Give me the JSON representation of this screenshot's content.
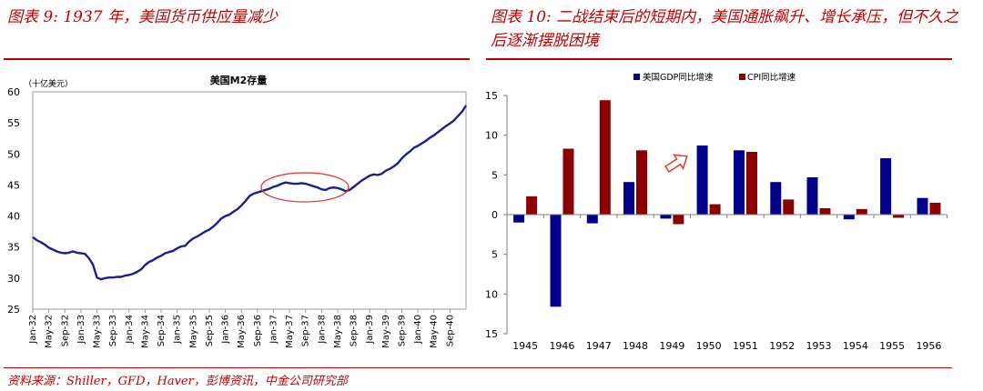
{
  "titles": {
    "left": "图表 9: 1937 年，美国货币供应量减少",
    "right": "图表 10: 二战结束后的短期内，美国通胀飙升、增长承压，但不久之后逐渐摆脱困境"
  },
  "source": "资料来源：Shiller，GFD，Haver，彭博资讯，中金公司研究部",
  "colors": {
    "accent": "#c00000",
    "navy": "#1a1f8c",
    "gdp": "#00008b",
    "cpi": "#8b0000"
  },
  "chart_data": [
    {
      "type": "line",
      "title": "美国M2存量",
      "unit_label": "（十亿美元）",
      "ylim": [
        25,
        60
      ],
      "yticks": [
        "60",
        "55",
        "50",
        "45",
        "40",
        "35",
        "30",
        "25"
      ],
      "xtick_labels": [
        "Jan-32",
        "May-32",
        "Sep-32",
        "Jan-33",
        "May-33",
        "Sep-33",
        "Jan-34",
        "May-34",
        "Sep-34",
        "Jan-35",
        "May-35",
        "Sep-35",
        "Jan-36",
        "May-36",
        "Sep-36",
        "Jan-37",
        "May-37",
        "Sep-37",
        "Jan-38",
        "May-38",
        "Sep-38",
        "Jan-39",
        "May-39",
        "Sep-39",
        "Jan-40",
        "May-40",
        "Sep-40"
      ],
      "x_months": [
        0,
        1,
        2,
        3,
        4,
        5,
        6,
        7,
        8,
        9,
        10,
        11,
        12,
        13,
        14,
        15,
        16,
        17,
        18,
        19,
        20,
        21,
        22,
        23,
        24,
        25,
        26,
        27,
        28,
        29,
        30,
        31,
        32,
        33,
        34,
        35,
        36,
        37,
        38,
        39,
        40,
        41,
        42,
        43,
        44,
        45,
        46,
        47,
        48,
        49,
        50,
        51,
        52,
        53,
        54,
        55,
        56,
        57,
        58,
        59,
        60,
        61,
        62,
        63,
        64,
        65,
        66,
        67,
        68,
        69,
        70,
        71,
        72,
        73,
        74,
        75,
        76,
        77,
        78,
        79,
        80,
        81,
        82,
        83,
        84,
        85,
        86,
        87,
        88,
        89,
        90,
        91,
        92,
        93,
        94,
        95,
        96,
        97,
        98,
        99,
        100,
        101,
        102,
        103,
        104,
        105,
        106,
        107,
        108
      ],
      "values": [
        36.6,
        36.1,
        35.8,
        35.4,
        34.9,
        34.6,
        34.3,
        34.1,
        34.0,
        34.1,
        34.3,
        34.1,
        34.0,
        33.9,
        33.2,
        32.2,
        30.1,
        29.8,
        30.0,
        30.1,
        30.1,
        30.2,
        30.2,
        30.4,
        30.5,
        30.7,
        31.0,
        31.4,
        32.1,
        32.6,
        32.9,
        33.3,
        33.6,
        34.0,
        34.2,
        34.4,
        34.8,
        35.1,
        35.2,
        35.9,
        36.4,
        36.7,
        37.1,
        37.5,
        37.8,
        38.3,
        38.9,
        39.6,
        40.0,
        40.2,
        40.7,
        41.1,
        41.7,
        42.4,
        43.2,
        43.6,
        43.8,
        44.0,
        44.2,
        44.4,
        44.7,
        44.9,
        45.2,
        45.4,
        45.3,
        45.2,
        45.2,
        45.3,
        45.2,
        45.0,
        44.8,
        44.6,
        44.3,
        44.2,
        44.5,
        44.6,
        44.5,
        44.3,
        44.0,
        44.2,
        44.7,
        45.2,
        45.7,
        46.1,
        46.5,
        46.7,
        46.6,
        46.8,
        47.3,
        47.6,
        48.0,
        48.5,
        49.3,
        49.9,
        50.4,
        51.0,
        51.3,
        51.7,
        52.1,
        52.6,
        53.0,
        53.5,
        54.0,
        54.5,
        54.9,
        55.4,
        56.1,
        56.8,
        57.8
      ],
      "annotation": "ellipse around Jan-37 to Sep-38 decline"
    },
    {
      "type": "bar",
      "categories": [
        "1945",
        "1946",
        "1947",
        "1948",
        "1949",
        "1950",
        "1951",
        "1952",
        "1953",
        "1954",
        "1955",
        "1956"
      ],
      "series": [
        {
          "name": "美国GDP同比增速",
          "values": [
            -1.0,
            -11.6,
            -1.1,
            4.1,
            -0.5,
            8.7,
            8.1,
            4.1,
            4.7,
            -0.6,
            7.1,
            2.1
          ]
        },
        {
          "name": "CPI同比增速",
          "values": [
            2.3,
            8.3,
            14.4,
            8.1,
            -1.2,
            1.3,
            7.9,
            1.9,
            0.8,
            0.7,
            -0.4,
            1.5
          ]
        }
      ],
      "ylim": [
        -15,
        15
      ],
      "ytick_values": [
        15,
        10,
        5,
        0,
        -5,
        -10,
        -15
      ],
      "ytick_labels": [
        "15",
        "10",
        "5",
        "0",
        "5",
        "10",
        "15"
      ],
      "annotation": "hollow red arrow pointing to 1950"
    }
  ]
}
